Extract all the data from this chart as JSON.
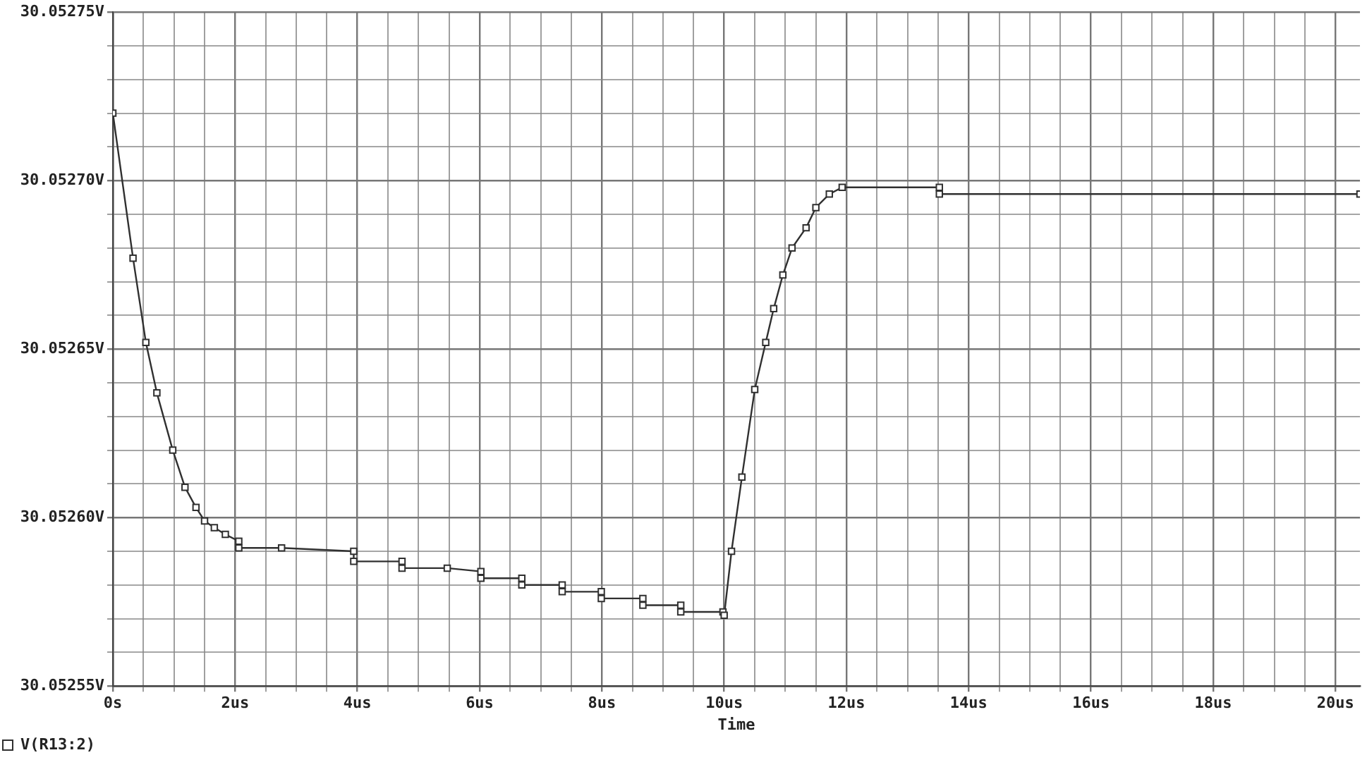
{
  "chart_data": {
    "type": "line",
    "xlabel": "Time",
    "legend": "bottom left",
    "marker": "square",
    "line_style": "solid",
    "grid": true,
    "xlim": [
      0,
      20.4
    ],
    "xticks": [
      {
        "value": 0,
        "label": "0s"
      },
      {
        "value": 0.5,
        "label": null
      },
      {
        "value": 1,
        "label": null
      },
      {
        "value": 1.5,
        "label": null
      },
      {
        "value": 2,
        "label": "2us"
      },
      {
        "value": 2.5,
        "label": null
      },
      {
        "value": 3,
        "label": null
      },
      {
        "value": 3.5,
        "label": null
      },
      {
        "value": 4,
        "label": "4us"
      },
      {
        "value": 4.5,
        "label": null
      },
      {
        "value": 5,
        "label": null
      },
      {
        "value": 5.5,
        "label": null
      },
      {
        "value": 6,
        "label": "6us"
      },
      {
        "value": 6.5,
        "label": null
      },
      {
        "value": 7,
        "label": null
      },
      {
        "value": 7.5,
        "label": null
      },
      {
        "value": 8,
        "label": "8us"
      },
      {
        "value": 8.5,
        "label": null
      },
      {
        "value": 9,
        "label": null
      },
      {
        "value": 9.5,
        "label": null
      },
      {
        "value": 10,
        "label": "10us"
      },
      {
        "value": 10.5,
        "label": null
      },
      {
        "value": 11,
        "label": null
      },
      {
        "value": 11.5,
        "label": null
      },
      {
        "value": 12,
        "label": "12us"
      },
      {
        "value": 12.5,
        "label": null
      },
      {
        "value": 13,
        "label": null
      },
      {
        "value": 13.5,
        "label": null
      },
      {
        "value": 14,
        "label": "14us"
      },
      {
        "value": 14.5,
        "label": null
      },
      {
        "value": 15,
        "label": null
      },
      {
        "value": 15.5,
        "label": null
      },
      {
        "value": 16,
        "label": "16us"
      },
      {
        "value": 16.5,
        "label": null
      },
      {
        "value": 17,
        "label": null
      },
      {
        "value": 17.5,
        "label": null
      },
      {
        "value": 18,
        "label": "18us"
      },
      {
        "value": 18.5,
        "label": null
      },
      {
        "value": 19,
        "label": null
      },
      {
        "value": 19.5,
        "label": null
      },
      {
        "value": 20,
        "label": "20us"
      }
    ],
    "ylim": [
      30.05255,
      30.05275
    ],
    "yticks": [
      {
        "value": 30.05255,
        "label": "30.05255V"
      },
      {
        "value": 30.05256,
        "label": null
      },
      {
        "value": 30.05257,
        "label": null
      },
      {
        "value": 30.05258,
        "label": null
      },
      {
        "value": 30.05259,
        "label": null
      },
      {
        "value": 30.0526,
        "label": "30.05260V"
      },
      {
        "value": 30.05261,
        "label": null
      },
      {
        "value": 30.05262,
        "label": null
      },
      {
        "value": 30.05263,
        "label": null
      },
      {
        "value": 30.05264,
        "label": null
      },
      {
        "value": 30.05265,
        "label": "30.05265V"
      },
      {
        "value": 30.05266,
        "label": null
      },
      {
        "value": 30.05267,
        "label": null
      },
      {
        "value": 30.05268,
        "label": null
      },
      {
        "value": 30.05269,
        "label": null
      },
      {
        "value": 30.0527,
        "label": "30.05270V"
      },
      {
        "value": 30.05271,
        "label": null
      },
      {
        "value": 30.05272,
        "label": null
      },
      {
        "value": 30.05273,
        "label": null
      },
      {
        "value": 30.05274,
        "label": null
      },
      {
        "value": 30.05275,
        "label": "30.05275V"
      }
    ],
    "x": [
      0,
      0.33,
      0.54,
      0.72,
      0.98,
      1.18,
      1.36,
      1.5,
      1.66,
      1.84,
      2.06,
      2.06,
      2.76,
      3.94,
      3.94,
      4.73,
      4.73,
      5.47,
      6.02,
      6.02,
      6.69,
      6.69,
      7.35,
      7.35,
      7.99,
      7.99,
      8.67,
      8.67,
      9.29,
      9.29,
      9.98,
      10,
      10.12,
      10.29,
      10.5,
      10.68,
      10.81,
      10.96,
      11.11,
      11.34,
      11.5,
      11.72,
      11.93,
      13.52,
      13.52,
      20.4
    ],
    "series": [
      {
        "name": "V(R13:2)",
        "color": "#303030",
        "values": [
          30.05272,
          30.052677,
          30.052652,
          30.052637,
          30.05262,
          30.052609,
          30.052603,
          30.052599,
          30.052597,
          30.052595,
          30.052593,
          30.052591,
          30.052591,
          30.05259,
          30.052587,
          30.052587,
          30.052585,
          30.052585,
          30.052584,
          30.052582,
          30.052582,
          30.05258,
          30.05258,
          30.052578,
          30.052578,
          30.052576,
          30.052576,
          30.052574,
          30.052574,
          30.052572,
          30.052572,
          30.052571,
          30.05259,
          30.052612,
          30.052638,
          30.052652,
          30.052662,
          30.052672,
          30.05268,
          30.052686,
          30.052692,
          30.052696,
          30.052698,
          30.052698,
          30.052696,
          30.052696
        ]
      }
    ]
  }
}
